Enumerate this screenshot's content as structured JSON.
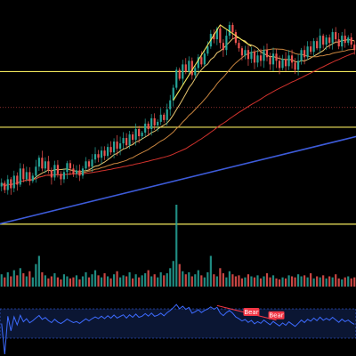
{
  "chart_data": {
    "type": "candlestick",
    "grid": false,
    "legend": "none",
    "colors": {
      "background": "#000000",
      "up": "#26a69a",
      "down": "#ef5350",
      "ma_fast": "#e8c56f",
      "ma_mid": "#c9853f",
      "ma_slow": "#d2322d",
      "trendline": "#3d5bd9",
      "horizontal_levels": "#f2e75c",
      "pattern_line": "#f2e75c",
      "dotted_level": "#b23a3a",
      "rsi_line": "#3d6bff",
      "rsi_band_fill": "#0b1633",
      "rsi_band_border": "#3d6bff",
      "divergence_tag": "#f23645"
    },
    "price_pane": {
      "ylim": [
        -10,
        110
      ],
      "closes": [
        22,
        18,
        24,
        19,
        26,
        21,
        30,
        24,
        28,
        23,
        26,
        31,
        36,
        30,
        34,
        29,
        25,
        32,
        27,
        24,
        28,
        33,
        30,
        27,
        29,
        26,
        30,
        34,
        31,
        35,
        38,
        36,
        40,
        37,
        42,
        39,
        45,
        41,
        44,
        47,
        43,
        49,
        46,
        52,
        48,
        50,
        55,
        52,
        58,
        54,
        56,
        60,
        57,
        63,
        68,
        75,
        85,
        80,
        88,
        84,
        90,
        82,
        86,
        92,
        88,
        94,
        98,
        105,
        102,
        108,
        100,
        96,
        104,
        110,
        106,
        100,
        97,
        93,
        96,
        91,
        95,
        89,
        93,
        90,
        96,
        92,
        88,
        94,
        90,
        86,
        91,
        87,
        93,
        89,
        85,
        90,
        96,
        92,
        98,
        95,
        101,
        97,
        104,
        99,
        103,
        100,
        106,
        102,
        98,
        104,
        100,
        103,
        99,
        96
      ],
      "moving_averages": [
        {
          "period": 10,
          "color_key": "ma_fast"
        },
        {
          "period": 25,
          "color_key": "ma_mid"
        },
        {
          "period": 60,
          "color_key": "ma_slow"
        }
      ],
      "horizontal_levels": [
        84,
        53,
        -1
      ],
      "dotted_level": 64,
      "trendline": {
        "from": [
          0,
          -1
        ],
        "to": [
          113,
          48
        ]
      },
      "pattern_lines": [
        {
          "from": [
            55,
            68
          ],
          "to": [
            70,
            110
          ]
        },
        {
          "from": [
            70,
            110
          ],
          "to": [
            80,
            98
          ]
        }
      ]
    },
    "volume_pane": {
      "values": [
        12,
        9,
        14,
        10,
        16,
        11,
        18,
        13,
        10,
        15,
        9,
        22,
        30,
        14,
        11,
        8,
        10,
        13,
        9,
        7,
        12,
        10,
        8,
        9,
        11,
        7,
        10,
        14,
        9,
        12,
        16,
        11,
        9,
        13,
        10,
        8,
        12,
        15,
        9,
        11,
        10,
        14,
        8,
        12,
        9,
        11,
        13,
        16,
        10,
        12,
        9,
        14,
        11,
        13,
        18,
        25,
        80,
        22,
        15,
        12,
        14,
        10,
        12,
        16,
        11,
        9,
        14,
        30,
        12,
        10,
        18,
        13,
        9,
        15,
        12,
        10,
        11,
        8,
        9,
        12,
        10,
        9,
        11,
        8,
        10,
        13,
        9,
        11,
        8,
        7,
        9,
        8,
        11,
        10,
        9,
        12,
        10,
        11,
        9,
        13,
        8,
        10,
        9,
        11,
        8,
        10,
        9,
        12,
        8,
        7,
        9,
        10,
        8,
        9
      ]
    },
    "rsi_pane": {
      "ylim": [
        0,
        100
      ],
      "band": [
        30,
        70
      ],
      "divergence_tags": [
        {
          "index": 80,
          "label": "Bear"
        },
        {
          "index": 88,
          "label": "Bear"
        }
      ]
    }
  }
}
